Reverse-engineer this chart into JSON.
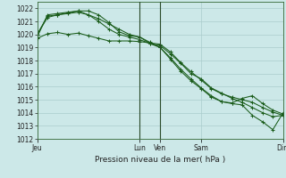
{
  "background_color": "#cce8e8",
  "grid_color": "#aacccc",
  "line_color": "#1a5c1a",
  "marker_color": "#1a5c1a",
  "xlabel_text": "Pression niveau de la mer( hPa )",
  "ylim": [
    1012,
    1022.5
  ],
  "yticks": [
    1012,
    1013,
    1014,
    1015,
    1016,
    1017,
    1018,
    1019,
    1020,
    1021,
    1022
  ],
  "xtick_labels": [
    "Jeu",
    "Lun",
    "Ven",
    "Sam",
    "Dim"
  ],
  "xtick_positions": [
    0.0,
    0.417,
    0.5,
    0.667,
    1.0
  ],
  "series": [
    {
      "x": [
        0.0,
        0.042,
        0.083,
        0.125,
        0.167,
        0.208,
        0.25,
        0.292,
        0.333,
        0.375,
        0.417,
        0.458,
        0.5,
        0.542,
        0.583,
        0.625,
        0.667,
        0.708,
        0.75,
        0.792,
        0.833,
        0.875,
        0.917,
        0.958,
        1.0
      ],
      "y": [
        1019.8,
        1021.5,
        1021.6,
        1021.7,
        1021.8,
        1021.5,
        1021.0,
        1020.4,
        1020.0,
        1019.8,
        1019.6,
        1019.3,
        1019.15,
        1018.5,
        1017.8,
        1017.0,
        1016.6,
        1015.9,
        1015.5,
        1015.1,
        1014.8,
        1014.4,
        1014.0,
        1013.7,
        1013.8
      ]
    },
    {
      "x": [
        0.0,
        0.042,
        0.083,
        0.125,
        0.167,
        0.208,
        0.25,
        0.292,
        0.333,
        0.375,
        0.417,
        0.458,
        0.5,
        0.542,
        0.583,
        0.625,
        0.667,
        0.708,
        0.75,
        0.792,
        0.833,
        0.875,
        0.917,
        0.958,
        1.0
      ],
      "y": [
        1020.0,
        1021.4,
        1021.5,
        1021.65,
        1021.8,
        1021.8,
        1021.5,
        1020.9,
        1020.2,
        1019.9,
        1019.8,
        1019.3,
        1019.0,
        1018.2,
        1017.35,
        1016.6,
        1015.9,
        1015.3,
        1014.85,
        1014.7,
        1014.6,
        1013.8,
        1013.3,
        1012.7,
        1014.0
      ]
    },
    {
      "x": [
        0.0,
        0.042,
        0.083,
        0.125,
        0.167,
        0.208,
        0.25,
        0.292,
        0.333,
        0.375,
        0.417,
        0.458,
        0.5,
        0.542,
        0.583,
        0.625,
        0.667,
        0.708,
        0.75,
        0.792,
        0.833,
        0.875,
        0.917,
        0.958,
        1.0
      ],
      "y": [
        1020.0,
        1021.3,
        1021.5,
        1021.6,
        1021.7,
        1021.5,
        1021.2,
        1020.8,
        1020.4,
        1020.0,
        1019.8,
        1019.4,
        1019.0,
        1018.1,
        1017.2,
        1016.45,
        1015.85,
        1015.2,
        1014.85,
        1014.75,
        1015.1,
        1015.3,
        1014.7,
        1014.2,
        1013.9
      ]
    },
    {
      "x": [
        0.0,
        0.042,
        0.083,
        0.125,
        0.167,
        0.208,
        0.25,
        0.292,
        0.333,
        0.375,
        0.417,
        0.458,
        0.5,
        0.542,
        0.583,
        0.625,
        0.667,
        0.708,
        0.75,
        0.792,
        0.833,
        0.875,
        0.917,
        0.958,
        1.0
      ],
      "y": [
        1019.7,
        1020.05,
        1020.15,
        1020.0,
        1020.1,
        1019.9,
        1019.7,
        1019.5,
        1019.5,
        1019.5,
        1019.45,
        1019.35,
        1019.25,
        1018.65,
        1017.85,
        1017.15,
        1016.5,
        1015.85,
        1015.45,
        1015.2,
        1015.0,
        1014.8,
        1014.4,
        1014.05,
        1013.8
      ]
    }
  ],
  "vline_positions": [
    0.417,
    0.5
  ],
  "xlim": [
    0.0,
    1.0
  ],
  "tick_fontsize": 5.5,
  "label_fontsize": 6.5,
  "marker_size": 2.8,
  "line_width": 0.75
}
